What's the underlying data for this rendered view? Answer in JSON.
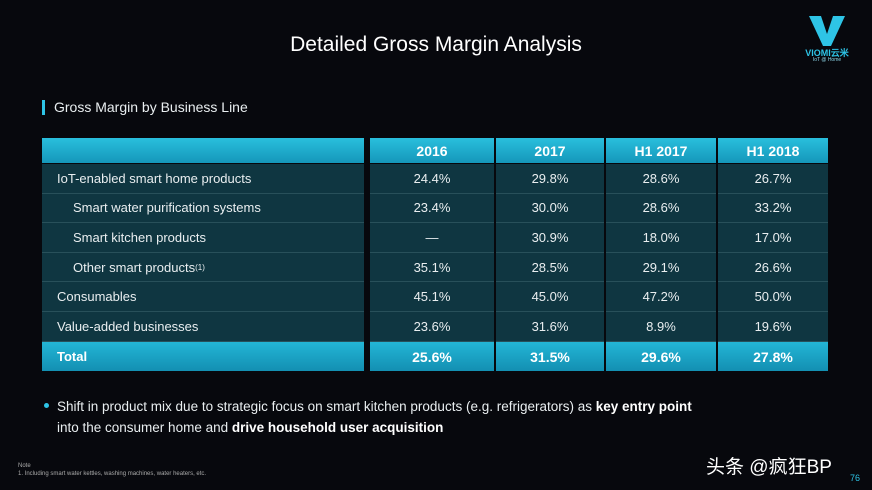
{
  "header": {
    "title": "Detailed Gross Margin Analysis",
    "logo": {
      "brand": "VIOMI云米",
      "tagline": "IoT @ Home"
    }
  },
  "section": "Gross Margin by Business Line",
  "table": {
    "columns": [
      "2016",
      "2017",
      "H1 2017",
      "H1 2018"
    ],
    "rows": [
      {
        "label": "IoT-enabled smart home products",
        "indent": false,
        "cells": [
          "24.4%",
          "29.8%",
          "28.6%",
          "26.7%"
        ]
      },
      {
        "label": "Smart water purification systems",
        "indent": true,
        "cells": [
          "23.4%",
          "30.0%",
          "28.6%",
          "33.2%"
        ]
      },
      {
        "label": "Smart kitchen products",
        "indent": true,
        "cells": [
          "—",
          "30.9%",
          "18.0%",
          "17.0%"
        ]
      },
      {
        "label": "Other smart products",
        "note_ref": "(1)",
        "indent": true,
        "cells": [
          "35.1%",
          "28.5%",
          "29.1%",
          "26.6%"
        ]
      },
      {
        "label": "Consumables",
        "indent": false,
        "cells": [
          "45.1%",
          "45.0%",
          "47.2%",
          "50.0%"
        ]
      },
      {
        "label": "Value-added businesses",
        "indent": false,
        "cells": [
          "23.6%",
          "31.6%",
          "8.9%",
          "19.6%"
        ]
      }
    ],
    "total": {
      "label": "Total",
      "cells": [
        "25.6%",
        "31.5%",
        "29.6%",
        "27.8%"
      ]
    }
  },
  "bullet": [
    [
      {
        "text": "Shift in product mix due to strategic focus on smart kitchen products (e.g. refrigerators) as ",
        "bold": false
      },
      {
        "text": "key entry point",
        "bold": true
      }
    ],
    [
      {
        "text": "into the consumer home and ",
        "bold": false
      },
      {
        "text": "drive household user acquisition",
        "bold": true
      }
    ]
  ],
  "footnote": {
    "heading": "Note",
    "items": [
      "1. Including smart water kettles, washing machines, water heaters, etc."
    ]
  },
  "page_number": 76,
  "watermark": "头条 @疯狂BP"
}
